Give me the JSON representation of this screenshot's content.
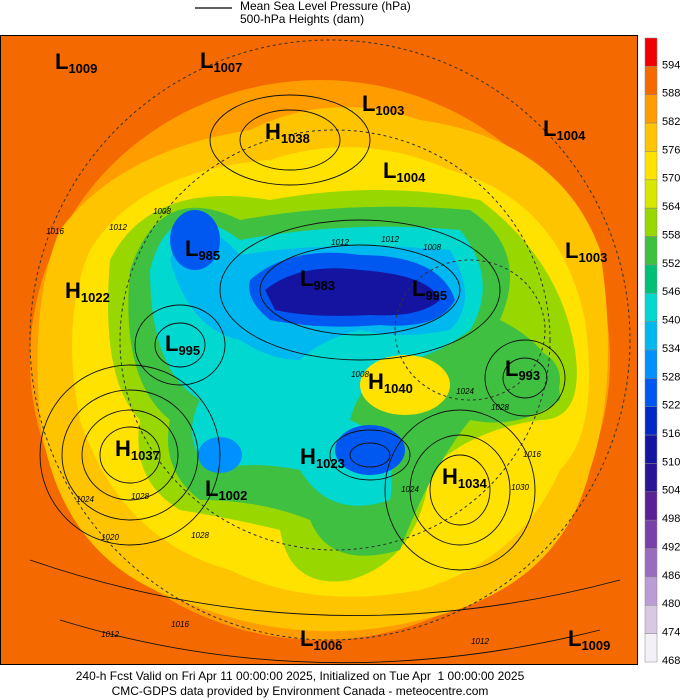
{
  "legend": {
    "items": [
      "Mean Sea Level Pressure (hPa)",
      "500-hPa Heights (dam)"
    ]
  },
  "colorbar": {
    "levels": [
      594,
      588,
      582,
      576,
      570,
      564,
      558,
      552,
      546,
      540,
      534,
      528,
      522,
      516,
      510,
      504,
      498,
      492,
      486,
      480,
      474,
      468
    ],
    "colors": [
      "#f00000",
      "#f46a00",
      "#ff9c00",
      "#ffc400",
      "#ffe200",
      "#d8e600",
      "#98d800",
      "#40c040",
      "#00c078",
      "#00d8d0",
      "#00b8f0",
      "#0090ff",
      "#0058f0",
      "#0028c8",
      "#1414a0",
      "#2a1496",
      "#5a2096",
      "#7a40aa",
      "#9a6cc0",
      "#bc9cd4",
      "#d8c8e4",
      "#f4f0f8"
    ]
  },
  "centers": [
    {
      "type": "L",
      "value": 1009
    },
    {
      "type": "L",
      "value": 1007
    },
    {
      "type": "L",
      "value": 1003
    },
    {
      "type": "H",
      "value": 1038
    },
    {
      "type": "L",
      "value": 1004
    },
    {
      "type": "L",
      "value": 1004
    },
    {
      "type": "L",
      "value": 985
    },
    {
      "type": "L",
      "value": 1003
    },
    {
      "type": "L",
      "value": 983
    },
    {
      "type": "L",
      "value": 995
    },
    {
      "type": "H",
      "value": 1022
    },
    {
      "type": "L",
      "value": 995
    },
    {
      "type": "L",
      "value": 993
    },
    {
      "type": "H",
      "value": 1040
    },
    {
      "type": "H",
      "value": 1037
    },
    {
      "type": "H",
      "value": 1023
    },
    {
      "type": "H",
      "value": 1034
    },
    {
      "type": "L",
      "value": 1002
    },
    {
      "type": "L",
      "value": 1006
    },
    {
      "type": "L",
      "value": 1009
    }
  ],
  "contour_labels": [
    1016,
    1012,
    1008,
    1012,
    1012,
    1008,
    1024,
    1028,
    1020,
    1024,
    1028,
    1028,
    1030,
    1016,
    1016,
    1012,
    1012,
    1024,
    1008
  ],
  "footer": {
    "line1": "240-h Fcst Valid on Fri Apr 11 00:00:00 2025, Initialized on Tue Apr  1 00:00:00 2025",
    "line2": "CMC-GDPS data provided by Environment Canada - meteocentre.com"
  }
}
